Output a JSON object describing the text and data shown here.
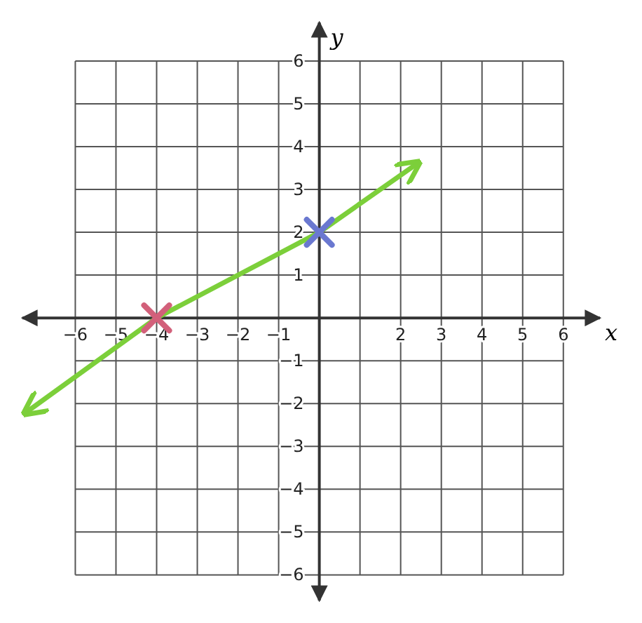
{
  "chart_data": {
    "type": "line",
    "xlabel": "x",
    "ylabel": "y",
    "xlim": [
      -7.3,
      6.9
    ],
    "ylim": [
      -6.6,
      6.9
    ],
    "xticks": [
      -6,
      -5,
      -4,
      -3,
      -2,
      -1,
      {
        "value": 0,
        "label": null
      },
      {
        "value": 1,
        "label": null
      },
      2,
      3,
      4,
      5,
      6
    ],
    "yticks": [
      -6,
      -5,
      -4,
      -3,
      -2,
      -1,
      {
        "value": 0,
        "label": null
      },
      1,
      2,
      3,
      4,
      5,
      6
    ],
    "grid": true,
    "series": [
      {
        "color": "#7ccf3a",
        "x": [
          -7.2,
          -4,
          0,
          2.4
        ],
        "values": [
          -2.2,
          0,
          2,
          3.6
        ],
        "marker": "none",
        "line_style": "solid"
      },
      {
        "type": "scatter",
        "color": "#d2607a",
        "x": [
          -4
        ],
        "values": [
          0
        ],
        "marker": "cross"
      },
      {
        "type": "scatter",
        "color": "#6a78d0",
        "x": [
          0
        ],
        "values": [
          2
        ],
        "marker": "cross"
      }
    ]
  }
}
